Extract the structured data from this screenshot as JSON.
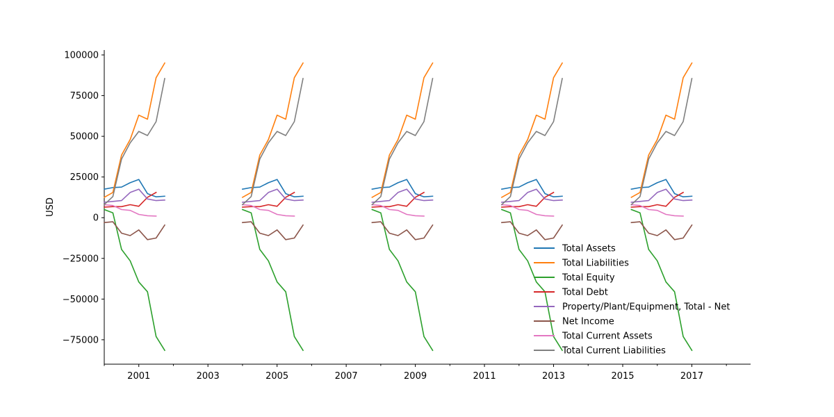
{
  "chart_data": {
    "type": "line",
    "title": "",
    "xlabel": "",
    "ylabel": "USD",
    "xlim": [
      2000.0,
      2018.7
    ],
    "ylim": [
      -90000,
      103000
    ],
    "x_ticks": [
      2001,
      2003,
      2005,
      2007,
      2009,
      2011,
      2013,
      2015,
      2017
    ],
    "y_ticks": [
      -75000,
      -50000,
      -25000,
      0,
      25000,
      50000,
      75000,
      100000
    ],
    "grid": false,
    "legend_position": "lower-right",
    "segment_starts": [
      2000.0,
      2004.0,
      2007.75,
      2011.5,
      2015.25
    ],
    "quarter_step": 0.25,
    "series": [
      {
        "name": "Total Assets",
        "color": "#1f77b4",
        "values": [
          17500,
          18500,
          18800,
          21500,
          23500,
          14800,
          12800,
          13200
        ]
      },
      {
        "name": "Total Liabilities",
        "color": "#ff7f0e",
        "values": [
          12500,
          15500,
          38500,
          48000,
          63000,
          60500,
          86000,
          95000
        ]
      },
      {
        "name": "Total Equity",
        "color": "#2ca02c",
        "values": [
          5000,
          3000,
          -19500,
          -26500,
          -39500,
          -45500,
          -73000,
          -81500
        ]
      },
      {
        "name": "Total Debt",
        "color": "#d62728",
        "values": [
          6500,
          6800,
          6800,
          8000,
          7000,
          12500,
          15500,
          null
        ]
      },
      {
        "name": "Property/Plant/Equipment, Total - Net",
        "color": "#9467bd",
        "values": [
          9500,
          10000,
          10500,
          15500,
          17500,
          11500,
          10500,
          10800
        ]
      },
      {
        "name": "Net Income",
        "color": "#8c564b",
        "values": [
          -3000,
          -2500,
          -9500,
          -11000,
          -7500,
          -13500,
          -12500,
          -4500
        ]
      },
      {
        "name": "Total Current Assets",
        "color": "#e377c2",
        "values": [
          8000,
          7500,
          5000,
          4500,
          2000,
          1200,
          1000,
          null
        ]
      },
      {
        "name": "Total Current Liabilities",
        "color": "#7f7f7f",
        "values": [
          8000,
          13000,
          36000,
          46000,
          53000,
          50500,
          59000,
          85500
        ]
      }
    ]
  }
}
